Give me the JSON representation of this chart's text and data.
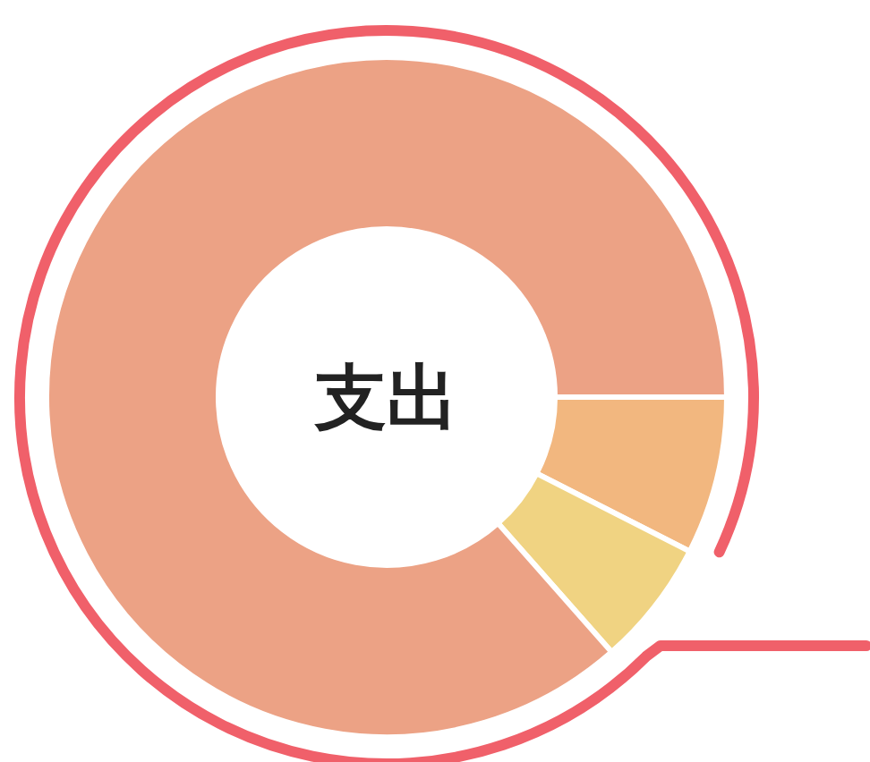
{
  "chart_data": {
    "type": "donut",
    "title": "支出",
    "categories": [
      null,
      null,
      null
    ],
    "values": [
      7.5,
      6,
      86.5
    ],
    "colors": [
      "#f2b77f",
      "#f0d382",
      "#eca285"
    ]
  }
}
